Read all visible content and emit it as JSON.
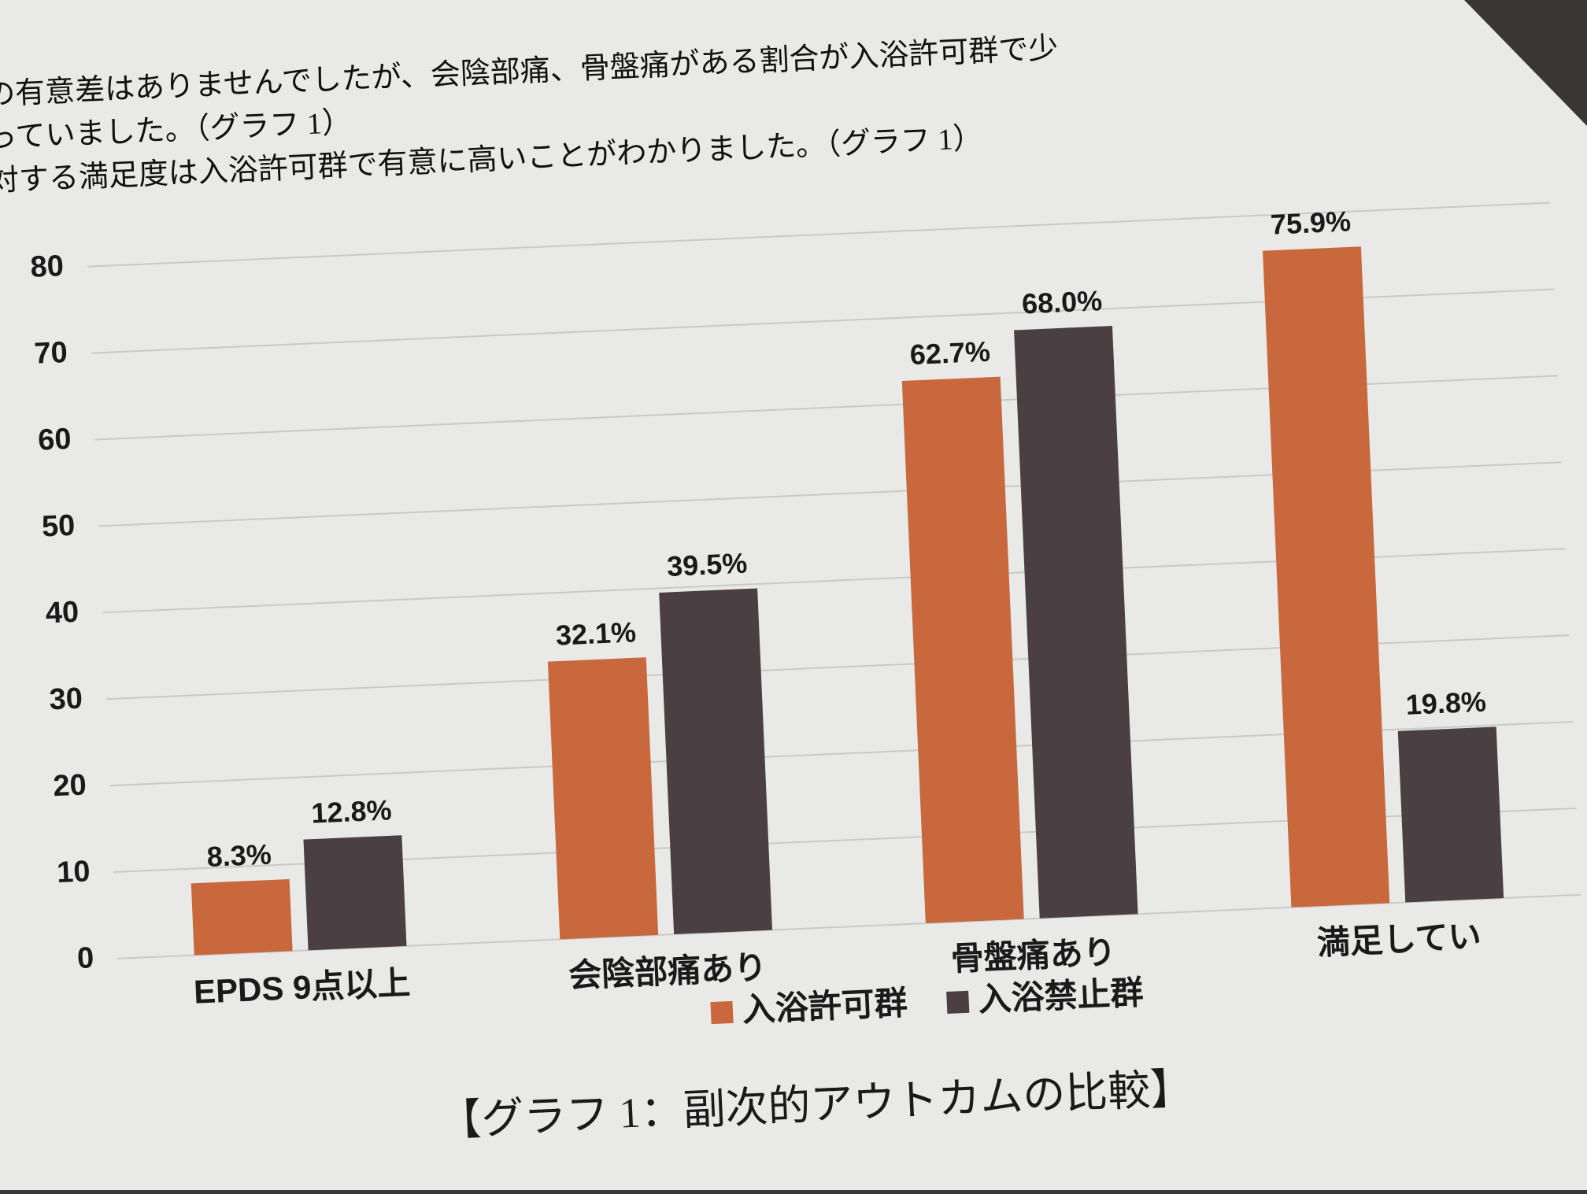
{
  "paragraph": [
    "の有意差はありませんでしたが、会陰部痛、骨盤痛がある割合が入浴許可群で少",
    "っていました。（グラフ 1）",
    "対する満足度は入浴許可群で有意に高いことがわかりました。（グラフ 1）"
  ],
  "chart_data": {
    "type": "bar",
    "title": "【グラフ 1：副次的アウトカムの比較】",
    "categories": [
      "EPDS 9点以上",
      "会陰部痛あり",
      "骨盤痛あり",
      "満足してい"
    ],
    "series": [
      {
        "name": "入浴許可群",
        "color": "#c8683c",
        "values": [
          8.3,
          32.1,
          62.7,
          75.9
        ],
        "value_labels": [
          "8.3%",
          "32.1%",
          "62.7%",
          "75.9%"
        ]
      },
      {
        "name": "入浴禁止群",
        "color": "#4a3f42",
        "values": [
          12.8,
          39.5,
          68.0,
          19.8
        ],
        "value_labels": [
          "12.8%",
          "39.5%",
          "68.0%",
          "19.8%"
        ]
      }
    ],
    "ylim": [
      0,
      80
    ],
    "yticks": [
      0,
      10,
      20,
      30,
      40,
      50,
      60,
      70,
      80
    ],
    "grid": true
  }
}
